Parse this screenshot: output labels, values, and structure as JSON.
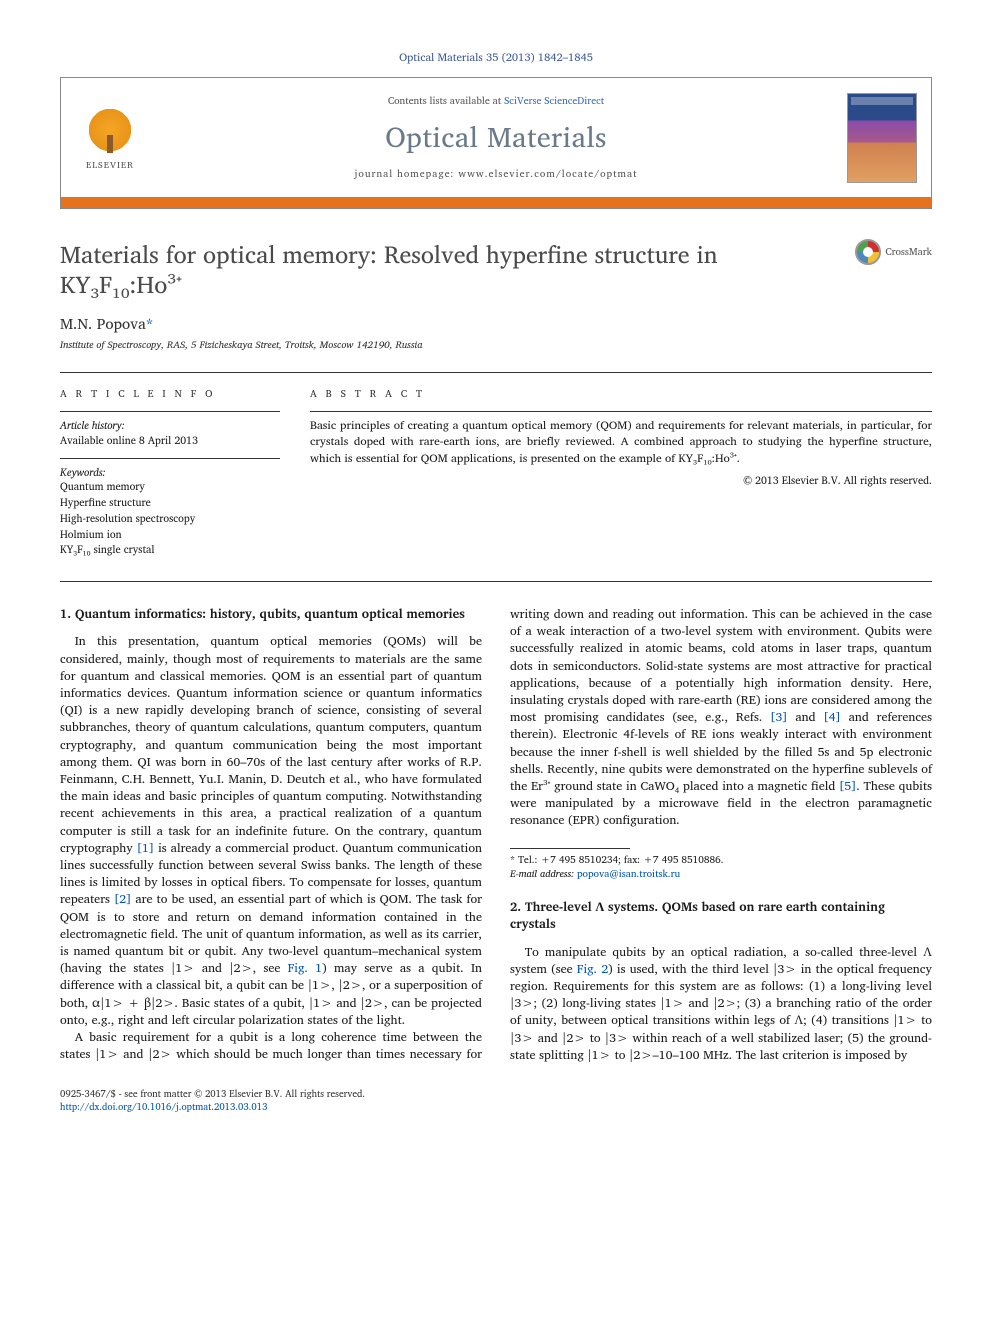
{
  "journal_ref": "Optical Materials 35 (2013) 1842–1845",
  "header": {
    "elsevier_label": "ELSEVIER",
    "contents_prefix": "Contents lists available at ",
    "contents_link": "SciVerse ScienceDirect",
    "journal_name": "Optical Materials",
    "homepage_prefix": "journal homepage: ",
    "homepage_url": "www.elsevier.com/locate/optmat"
  },
  "crossmark_label": "CrossMark",
  "title": "Materials for optical memory: Resolved hyperfine structure in KY₃F₁₀:Ho³⁺",
  "author_name": "M.N. Popova",
  "author_marker": "*",
  "affiliation": "Institute of Spectroscopy, RAS, 5 Fizicheskaya Street, Troitsk, Moscow 142190, Russia",
  "info": {
    "label": "A R T I C L E   I N F O",
    "history_label": "Article history:",
    "history_line": "Available online 8 April 2013",
    "keywords_label": "Keywords:",
    "keywords": [
      "Quantum memory",
      "Hyperfine structure",
      "High-resolution spectroscopy",
      "Holmium ion",
      "KY₃F₁₀ single crystal"
    ]
  },
  "abstract": {
    "label": "A B S T R A C T",
    "text": "Basic principles of creating a quantum optical memory (QOM) and requirements for relevant materials, in particular, for crystals doped with rare-earth ions, are briefly reviewed. A combined approach to studying the hyperfine structure, which is essential for QOM applications, is presented on the example of KY₃F₁₀:Ho³⁺.",
    "copyright": "© 2013 Elsevier B.V. All rights reserved."
  },
  "section1": {
    "heading": "1. Quantum informatics: history, qubits, quantum optical memories",
    "p1a": "In this presentation, quantum optical memories (QOMs) will be considered, mainly, though most of requirements to materials are the same for quantum and classical memories. QOM is an essential part of quantum informatics devices. Quantum information science or quantum informatics (QI) is a new rapidly developing branch of science, consisting of several subbranches, theory of quantum calculations, quantum computers, quantum cryptography, and quantum communication being the most important among them. QI was born in 60–70s of the last century after works of R.P. Feinmann, C.H. Bennett, Yu.I. Manin, D. Deutch et al., who have formulated the main ideas and basic principles of quantum computing. Notwithstanding recent achievements in this area, a practical realization of a quantum computer is still a task for an indefinite future. On the contrary, quantum cryptography ",
    "ref1": "[1]",
    "p1b": " is already a commercial product. Quantum communication lines successfully function between several Swiss banks. The length of these lines is limited by losses in optical fibers. To compensate for losses, quantum repeaters ",
    "ref2": "[2]",
    "p1c": " are to be used, an essential part of which is QOM. The task for QOM is to store and return on demand information contained in the electromagnetic field. The unit of quantum information, as well as its carrier, is named quantum bit or qubit. Any two-level quantum–mechanical system (having the states |1> and |2>, see ",
    "fig1": "Fig. 1",
    "p1d": ") may serve as a qubit. In difference with a classical bit, a qubit can be |1>, |2>, or a superposition of both, α|1> + β|2>. Basic states of a qubit, |1> and |2>, can be projected onto, e.g., right and left circular polarization states of the light.",
    "p2a": "A basic requirement for a qubit is a long coherence time between the states |1> and |2> which should be much longer than times necessary for writing down and reading out information. This can be achieved in the case of a weak interaction of a two-level system with environment. Qubits were successfully realized in atomic beams, cold atoms in laser traps, quantum dots in semiconductors. Solid-state systems are most attractive for practical applications, because of a potentially high information density. Here, insulating crystals doped with rare-earth (RE) ions are considered among the most promising candidates (see, e.g., Refs. ",
    "ref3": "[3]",
    "p2b": " and ",
    "ref4": "[4]",
    "p2c": " and references therein). Electronic 4f-levels of RE ions weakly interact with environment because the inner f-shell is well shielded by the filled 5s and 5p electronic shells. Recently, nine qubits were demonstrated on the hyperfine sublevels of the Er³⁺ ground state in CaWO₄ placed into a magnetic field ",
    "ref5": "[5]",
    "p2d": ". These qubits were manipulated by a microwave field in the electron paramagnetic resonance (EPR) configuration."
  },
  "section2": {
    "heading": "2. Three-level Λ systems. QOMs based on rare earth containing crystals",
    "p1a": "To manipulate qubits by an optical radiation, a so-called three-level Λ system (see ",
    "fig2": "Fig. 2",
    "p1b": ") is used, with the third level |3> in the optical frequency region. Requirements for this system are as follows: (1) a long-living level |3>; (2) long-living states |1> and |2>; (3) a branching ratio of the order of unity, between optical transitions within legs of Λ; (4) transitions |1> to |3> and |2> to |3> within reach of a well stabilized laser; (5) the ground-state splitting |1> to |2>–10–100 MHz. The last criterion is imposed by"
  },
  "footnote": {
    "marker": "*",
    "tel": "Tel.: +7 495 8510234; fax: +7 495 8510886.",
    "email_label": "E-mail address:",
    "email": "popova@isan.troitsk.ru"
  },
  "footer": {
    "line1": "0925-3467/$ - see front matter © 2013 Elsevier B.V. All rights reserved.",
    "doi": "http://dx.doi.org/10.1016/j.optmat.2013.03.013"
  }
}
